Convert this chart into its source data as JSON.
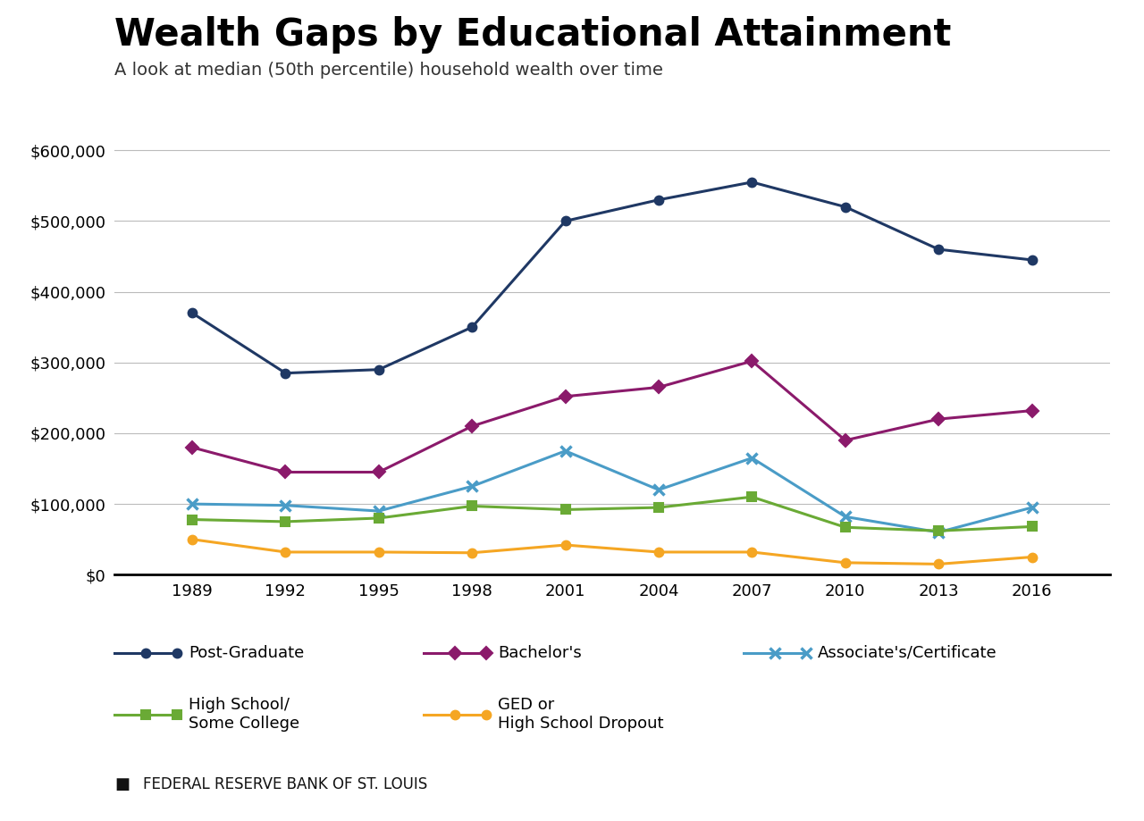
{
  "title": "Wealth Gaps by Educational Attainment",
  "subtitle": "A look at median (50th percentile) household wealth over time",
  "footer": "FEDERAL RESERVE BANK OF ST. LOUIS",
  "years": [
    1989,
    1992,
    1995,
    1998,
    2001,
    2004,
    2007,
    2010,
    2013,
    2016
  ],
  "series": [
    {
      "label": "Post-Graduate",
      "color": "#1f3864",
      "marker": "o",
      "markersize": 7,
      "markeredgewidth": 1.5,
      "values": [
        370000,
        285000,
        290000,
        350000,
        500000,
        530000,
        555000,
        520000,
        460000,
        445000
      ]
    },
    {
      "label": "Bachelor's",
      "color": "#8b1a6b",
      "marker": "D",
      "markersize": 7,
      "markeredgewidth": 1.5,
      "values": [
        180000,
        145000,
        145000,
        210000,
        252000,
        265000,
        302000,
        190000,
        220000,
        232000
      ]
    },
    {
      "label": "Associate's/Certificate",
      "color": "#4a9cc7",
      "marker": "x",
      "markersize": 9,
      "markeredgewidth": 2.5,
      "values": [
        100000,
        98000,
        90000,
        125000,
        175000,
        120000,
        165000,
        82000,
        60000,
        95000
      ]
    },
    {
      "label": "High School/\nSome College",
      "color": "#6aaa35",
      "marker": "s",
      "markersize": 7,
      "markeredgewidth": 1.5,
      "values": [
        78000,
        75000,
        80000,
        97000,
        92000,
        95000,
        110000,
        67000,
        62000,
        68000
      ]
    },
    {
      "label": "GED or\nHigh School Dropout",
      "color": "#f5a623",
      "marker": "o",
      "markersize": 7,
      "markeredgewidth": 1.5,
      "values": [
        50000,
        32000,
        32000,
        31000,
        42000,
        32000,
        32000,
        17000,
        15000,
        25000
      ]
    }
  ],
  "ylim": [
    0,
    650000
  ],
  "yticks": [
    0,
    100000,
    200000,
    300000,
    400000,
    500000,
    600000
  ],
  "background_color": "#ffffff",
  "grid_color": "#bbbbbb",
  "title_fontsize": 30,
  "subtitle_fontsize": 14,
  "tick_fontsize": 13,
  "legend_fontsize": 13,
  "footer_fontsize": 12
}
